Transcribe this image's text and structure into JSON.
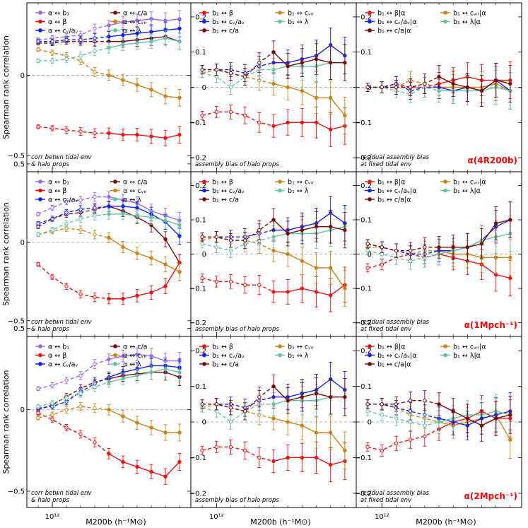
{
  "figure": {
    "ylabel": "Spearman rank correlation",
    "xlabel": "M200b (h⁻¹M⊙)",
    "xtick_label": "10¹²",
    "row_tags": [
      "α(4R200b)",
      "α(1Mpch⁻¹)",
      "α(2Mpch⁻¹)"
    ],
    "col_notes": [
      [
        "corr betwn tidal env",
        "& halo props"
      ],
      [
        "assembly bias of halo props"
      ],
      [
        "residual assembly bias",
        "at fixed tidal env"
      ]
    ],
    "col_ylim": [
      [
        -0.6,
        0.45
      ],
      [
        -0.24,
        0.24
      ],
      [
        -0.24,
        0.24
      ]
    ],
    "col_yticks": [
      [
        -0.5,
        0,
        0.5
      ],
      [
        -0.2,
        -0.1,
        0,
        0.1,
        0.2
      ],
      [
        -0.2,
        -0.1,
        0,
        0.1,
        0.2
      ]
    ],
    "col_ytick_labels": [
      [
        "−0.5",
        "0",
        "0.5"
      ],
      [
        "−0.2",
        "−0.1",
        "0",
        "0.1",
        "0.2"
      ],
      [
        "−0.2",
        "−0.1",
        "0",
        "0.1",
        "0.2"
      ]
    ]
  },
  "legends": {
    "left": [
      "α ↔ b₁",
      "α ↔ c/a",
      "α ↔ β",
      "α ↔ cᵥᵢᵣ",
      "α ↔ cᵥ/aᵥ",
      "α ↔ λ"
    ],
    "left_colors": [
      "#9966ee",
      "#7a0a0a",
      "#ee1111",
      "#c8841a",
      "#1122ee",
      "#66c2a5"
    ],
    "mid": [
      "b₁ ↔ β",
      "b₁ ↔ cᵥᵢᵣ",
      "b₁ ↔ cᵥ/aᵥ",
      "b₁ ↔ λ",
      "b₁ ↔ c/a"
    ],
    "mid_colors": [
      "#ee1111",
      "#c8841a",
      "#1122ee",
      "#66c2a5",
      "#7a0a0a"
    ],
    "right": [
      "b₁ ↔ β|α",
      "b₁ ↔ cᵥᵢᵣ|α",
      "b₁ ↔ cᵥ/aᵥ|α",
      "b₁ ↔ λ|α",
      "b₁ ↔ c/a|α"
    ],
    "right_colors": [
      "#ee1111",
      "#c8841a",
      "#1122ee",
      "#66c2a5",
      "#7a0a0a"
    ]
  },
  "chart_data": [
    {
      "type": "line",
      "panel": "row1-left",
      "x_log10_M": [
        11.9,
        12.0,
        12.1,
        12.2,
        12.3,
        12.4,
        12.5,
        12.6,
        12.7,
        12.8,
        12.9
      ],
      "ylim": [
        -0.6,
        0.45
      ],
      "series": [
        {
          "name": "α ↔ b₁",
          "color": "#9966ee",
          "values": [
            0.22,
            0.23,
            0.24,
            0.25,
            0.29,
            0.31,
            0.33,
            0.34,
            0.35,
            0.34,
            0.35
          ]
        },
        {
          "name": "α ↔ c/a",
          "color": "#7a0a0a",
          "values": [
            0.2,
            0.2,
            0.21,
            0.21,
            0.21,
            0.21,
            0.21,
            0.22,
            0.23,
            0.24,
            0.21
          ]
        },
        {
          "name": "α ↔ β",
          "color": "#ee1111",
          "values": [
            -0.32,
            -0.33,
            -0.34,
            -0.35,
            -0.36,
            -0.36,
            -0.37,
            -0.37,
            -0.38,
            -0.39,
            -0.37
          ]
        },
        {
          "name": "α ↔ cᵥᵢᵣ",
          "color": "#c8841a",
          "values": [
            0.16,
            0.14,
            0.12,
            0.09,
            0.02,
            0.0,
            -0.03,
            -0.06,
            -0.09,
            -0.13,
            -0.14
          ]
        },
        {
          "name": "α ↔ cᵥ/aᵥ",
          "color": "#1122ee",
          "values": [
            0.21,
            0.21,
            0.22,
            0.22,
            0.23,
            0.24,
            0.25,
            0.26,
            0.27,
            0.28,
            0.29
          ]
        },
        {
          "name": "α ↔ λ",
          "color": "#66c2a5",
          "values": [
            0.09,
            0.09,
            0.1,
            0.12,
            0.15,
            0.17,
            0.19,
            0.2,
            0.21,
            0.23,
            0.21
          ]
        }
      ]
    },
    {
      "type": "line",
      "panel": "row1-mid",
      "x_log10_M": [
        11.9,
        12.0,
        12.1,
        12.2,
        12.3,
        12.4,
        12.5,
        12.6,
        12.7,
        12.8,
        12.9
      ],
      "ylim": [
        -0.24,
        0.24
      ],
      "series": [
        {
          "name": "b₁ ↔ β",
          "color": "#ee1111",
          "values": [
            -0.08,
            -0.07,
            -0.07,
            -0.08,
            -0.1,
            -0.11,
            -0.1,
            -0.1,
            -0.1,
            -0.12,
            -0.11
          ]
        },
        {
          "name": "b₁ ↔ cᵥᵢᵣ",
          "color": "#c8841a",
          "values": [
            0.04,
            0.05,
            0.04,
            0.03,
            0.02,
            0.01,
            0.0,
            -0.01,
            -0.03,
            -0.03,
            -0.08
          ]
        },
        {
          "name": "b₁ ↔ cᵥ/aᵥ",
          "color": "#1122ee",
          "values": [
            0.05,
            0.05,
            0.05,
            0.04,
            0.06,
            0.07,
            0.07,
            0.08,
            0.09,
            0.12,
            0.09
          ]
        },
        {
          "name": "b₁ ↔ λ",
          "color": "#66c2a5",
          "values": [
            0.04,
            0.03,
            0.0,
            0.03,
            0.05,
            0.05,
            0.06,
            0.06,
            0.06,
            0.07,
            0.07
          ]
        },
        {
          "name": "b₁ ↔ c/a",
          "color": "#7a0a0a",
          "values": [
            0.05,
            0.05,
            0.04,
            0.03,
            0.07,
            0.1,
            0.06,
            0.07,
            0.08,
            0.07,
            0.07
          ]
        }
      ]
    },
    {
      "type": "line",
      "panel": "row1-right",
      "x_log10_M": [
        11.9,
        12.0,
        12.1,
        12.2,
        12.3,
        12.4,
        12.5,
        12.6,
        12.7,
        12.8,
        12.9
      ],
      "ylim": [
        -0.24,
        0.24
      ],
      "series": [
        {
          "name": "b₁ ↔ β|α",
          "color": "#ee1111",
          "values": [
            0.0,
            0.0,
            0.01,
            0.0,
            0.0,
            0.01,
            0.02,
            0.03,
            0.02,
            0.02,
            0.02
          ]
        },
        {
          "name": "b₁ ↔ cᵥᵢᵣ|α",
          "color": "#c8841a",
          "values": [
            0.0,
            0.0,
            0.0,
            0.02,
            0.01,
            0.0,
            0.0,
            0.0,
            0.0,
            0.01,
            -0.01
          ]
        },
        {
          "name": "b₁ ↔ cᵥ/aᵥ|α",
          "color": "#1122ee",
          "values": [
            0.0,
            0.0,
            0.01,
            -0.01,
            0.0,
            0.0,
            -0.01,
            0.0,
            -0.01,
            0.02,
            -0.01
          ]
        },
        {
          "name": "b₁ ↔ λ|α",
          "color": "#66c2a5",
          "values": [
            0.0,
            0.0,
            -0.01,
            -0.02,
            0.0,
            -0.01,
            -0.01,
            -0.01,
            -0.01,
            0.0,
            -0.01
          ]
        },
        {
          "name": "b₁ ↔ c/a|α",
          "color": "#7a0a0a",
          "values": [
            0.0,
            0.0,
            0.0,
            0.0,
            0.01,
            0.03,
            0.01,
            0.0,
            -0.01,
            0.02,
            0.01
          ]
        }
      ]
    },
    {
      "type": "line",
      "panel": "row2-left",
      "x_log10_M": [
        11.9,
        12.0,
        12.1,
        12.2,
        12.3,
        12.4,
        12.5,
        12.6,
        12.7,
        12.8,
        12.9
      ],
      "ylim": [
        -0.6,
        0.45
      ],
      "series": [
        {
          "name": "α ↔ b₁",
          "color": "#9966ee",
          "values": [
            0.18,
            0.22,
            0.26,
            0.27,
            0.29,
            0.29,
            0.27,
            0.25,
            0.2,
            0.17,
            0.14
          ]
        },
        {
          "name": "α ↔ c/a",
          "color": "#7a0a0a",
          "values": [
            0.1,
            0.15,
            0.18,
            0.19,
            0.21,
            0.23,
            0.2,
            0.16,
            0.11,
            0.02,
            -0.13
          ]
        },
        {
          "name": "α ↔ β",
          "color": "#ee1111",
          "values": [
            -0.14,
            -0.22,
            -0.28,
            -0.33,
            -0.35,
            -0.36,
            -0.36,
            -0.34,
            -0.32,
            -0.28,
            -0.13
          ]
        },
        {
          "name": "α ↔ cᵥᵢᵣ",
          "color": "#c8841a",
          "values": [
            0.05,
            0.07,
            0.09,
            0.08,
            0.05,
            0.03,
            -0.03,
            -0.07,
            -0.1,
            -0.14,
            -0.19
          ]
        },
        {
          "name": "α ↔ cᵥ/aᵥ",
          "color": "#1122ee",
          "values": [
            0.12,
            0.15,
            0.19,
            0.21,
            0.22,
            0.23,
            0.23,
            0.22,
            0.18,
            0.13,
            0.04
          ]
        },
        {
          "name": "α ↔ λ",
          "color": "#66c2a5",
          "values": [
            0.05,
            0.08,
            0.12,
            0.15,
            0.17,
            0.18,
            0.18,
            0.17,
            0.16,
            0.14,
            0.11
          ]
        }
      ]
    },
    {
      "type": "line",
      "panel": "row2-mid",
      "x_log10_M": [
        11.9,
        12.0,
        12.1,
        12.2,
        12.3,
        12.4,
        12.5,
        12.6,
        12.7,
        12.8,
        12.9
      ],
      "ylim": [
        -0.24,
        0.24
      ],
      "series": [
        {
          "name": "b₁ ↔ β",
          "color": "#ee1111",
          "values": [
            -0.07,
            -0.08,
            -0.08,
            -0.09,
            -0.09,
            -0.11,
            -0.11,
            -0.1,
            -0.11,
            -0.12,
            -0.09
          ]
        },
        {
          "name": "b₁ ↔ cᵥᵢᵣ",
          "color": "#c8841a",
          "values": [
            0.04,
            0.05,
            0.04,
            0.04,
            0.03,
            0.01,
            0.0,
            -0.02,
            -0.04,
            -0.04,
            -0.1
          ]
        },
        {
          "name": "b₁ ↔ cᵥ/aᵥ",
          "color": "#1122ee",
          "values": [
            0.05,
            0.05,
            0.05,
            0.05,
            0.06,
            0.07,
            0.07,
            0.08,
            0.09,
            0.12,
            0.09
          ]
        },
        {
          "name": "b₁ ↔ λ",
          "color": "#66c2a5",
          "values": [
            0.03,
            0.02,
            0.01,
            0.03,
            0.04,
            0.05,
            0.06,
            0.06,
            0.06,
            0.07,
            0.08
          ]
        },
        {
          "name": "b₁ ↔ c/a",
          "color": "#7a0a0a",
          "values": [
            0.05,
            0.05,
            0.04,
            0.04,
            0.07,
            0.1,
            0.06,
            0.07,
            0.08,
            0.08,
            0.07
          ]
        }
      ]
    },
    {
      "type": "line",
      "panel": "row2-right",
      "x_log10_M": [
        11.9,
        12.0,
        12.1,
        12.2,
        12.3,
        12.4,
        12.5,
        12.6,
        12.7,
        12.8,
        12.9
      ],
      "ylim": [
        -0.24,
        0.24
      ],
      "series": [
        {
          "name": "b₁ ↔ β|α",
          "color": "#ee1111",
          "values": [
            -0.04,
            -0.03,
            -0.01,
            0.0,
            -0.01,
            0.0,
            -0.01,
            -0.02,
            -0.03,
            -0.06,
            -0.07
          ]
        },
        {
          "name": "b₁ ↔ cᵥᵢᵣ|α",
          "color": "#c8841a",
          "values": [
            0.02,
            0.02,
            0.01,
            0.0,
            0.01,
            0.01,
            0.0,
            0.0,
            -0.01,
            -0.01,
            -0.01
          ]
        },
        {
          "name": "b₁ ↔ cᵥ/aᵥ|α",
          "color": "#1122ee",
          "values": [
            0.03,
            0.02,
            0.01,
            0.0,
            0.0,
            0.01,
            0.01,
            0.02,
            0.04,
            0.08,
            0.1
          ]
        },
        {
          "name": "b₁ ↔ λ|α",
          "color": "#66c2a5",
          "values": [
            0.01,
            0.0,
            -0.01,
            -0.02,
            -0.01,
            0.0,
            0.01,
            0.02,
            0.04,
            0.05,
            0.06
          ]
        },
        {
          "name": "b₁ ↔ c/a|α",
          "color": "#7a0a0a",
          "values": [
            0.03,
            0.02,
            0.01,
            0.01,
            0.02,
            0.02,
            0.02,
            0.02,
            0.03,
            0.09,
            0.1
          ]
        }
      ]
    },
    {
      "type": "line",
      "panel": "row3-left",
      "x_log10_M": [
        11.9,
        12.0,
        12.1,
        12.2,
        12.3,
        12.4,
        12.5,
        12.6,
        12.7,
        12.8,
        12.9
      ],
      "ylim": [
        -0.6,
        0.45
      ],
      "series": [
        {
          "name": "α ↔ b₁",
          "color": "#9966ee",
          "values": [
            0.13,
            0.15,
            0.18,
            0.21,
            0.28,
            0.31,
            0.33,
            0.34,
            0.33,
            0.3,
            0.3
          ]
        },
        {
          "name": "α ↔ c/a",
          "color": "#7a0a0a",
          "values": [
            0.0,
            0.03,
            0.08,
            0.13,
            0.17,
            0.19,
            0.21,
            0.22,
            0.23,
            0.23,
            0.2
          ]
        },
        {
          "name": "α ↔ β",
          "color": "#ee1111",
          "values": [
            -0.02,
            -0.06,
            -0.11,
            -0.15,
            -0.2,
            -0.27,
            -0.32,
            -0.35,
            -0.38,
            -0.41,
            -0.32
          ]
        },
        {
          "name": "α ↔ cᵥᵢᵣ",
          "color": "#c8841a",
          "values": [
            -0.05,
            -0.03,
            0.0,
            0.02,
            0.01,
            0.0,
            -0.04,
            -0.08,
            -0.11,
            -0.14,
            -0.14
          ]
        },
        {
          "name": "α ↔ cᵥ/aᵥ",
          "color": "#1122ee",
          "values": [
            0.01,
            0.02,
            0.05,
            0.11,
            0.16,
            0.2,
            0.23,
            0.25,
            0.27,
            0.27,
            0.26
          ]
        },
        {
          "name": "α ↔ λ",
          "color": "#66c2a5",
          "values": [
            0.02,
            0.04,
            0.07,
            0.1,
            0.14,
            0.17,
            0.19,
            0.21,
            0.23,
            0.25,
            0.23
          ]
        }
      ]
    },
    {
      "type": "line",
      "panel": "row3-mid",
      "x_log10_M": [
        11.9,
        12.0,
        12.1,
        12.2,
        12.3,
        12.4,
        12.5,
        12.6,
        12.7,
        12.8,
        12.9
      ],
      "ylim": [
        -0.24,
        0.24
      ],
      "series": [
        {
          "name": "b₁ ↔ β",
          "color": "#ee1111",
          "values": [
            -0.08,
            -0.07,
            -0.07,
            -0.08,
            -0.1,
            -0.11,
            -0.1,
            -0.1,
            -0.1,
            -0.12,
            -0.11
          ]
        },
        {
          "name": "b₁ ↔ cᵥᵢᵣ",
          "color": "#c8841a",
          "values": [
            0.04,
            0.05,
            0.04,
            0.03,
            0.02,
            0.01,
            0.0,
            -0.01,
            -0.03,
            -0.03,
            -0.08
          ]
        },
        {
          "name": "b₁ ↔ cᵥ/aᵥ",
          "color": "#1122ee",
          "values": [
            0.05,
            0.05,
            0.05,
            0.04,
            0.06,
            0.07,
            0.07,
            0.08,
            0.09,
            0.12,
            0.09
          ]
        },
        {
          "name": "b₁ ↔ λ",
          "color": "#66c2a5",
          "values": [
            0.04,
            0.03,
            0.0,
            0.03,
            0.05,
            0.05,
            0.06,
            0.06,
            0.06,
            0.07,
            0.07
          ]
        },
        {
          "name": "b₁ ↔ c/a",
          "color": "#7a0a0a",
          "values": [
            0.05,
            0.05,
            0.04,
            0.03,
            0.07,
            0.1,
            0.06,
            0.07,
            0.08,
            0.07,
            0.07
          ]
        }
      ]
    },
    {
      "type": "line",
      "panel": "row3-right",
      "x_log10_M": [
        11.9,
        12.0,
        12.1,
        12.2,
        12.3,
        12.4,
        12.5,
        12.6,
        12.7,
        12.8,
        12.9
      ],
      "ylim": [
        -0.24,
        0.24
      ],
      "series": [
        {
          "name": "b₁ ↔ β|α",
          "color": "#ee1111",
          "values": [
            -0.07,
            -0.08,
            -0.06,
            -0.05,
            -0.04,
            -0.02,
            0.0,
            0.01,
            0.03,
            0.01,
            0.01
          ]
        },
        {
          "name": "b₁ ↔ cᵥᵢᵣ|α",
          "color": "#c8841a",
          "values": [
            0.05,
            0.05,
            0.04,
            0.02,
            0.01,
            0.0,
            -0.01,
            0.0,
            0.01,
            0.02,
            -0.05
          ]
        },
        {
          "name": "b₁ ↔ cᵥ/aᵥ|α",
          "color": "#1122ee",
          "values": [
            0.05,
            0.05,
            0.04,
            0.03,
            0.02,
            0.01,
            0.0,
            -0.01,
            0.01,
            0.02,
            0.03
          ]
        },
        {
          "name": "b₁ ↔ λ|α",
          "color": "#66c2a5",
          "values": [
            0.03,
            0.02,
            0.01,
            0.0,
            -0.01,
            0.0,
            0.01,
            0.02,
            0.02,
            0.03,
            0.02
          ]
        },
        {
          "name": "b₁ ↔ c/a|α",
          "color": "#7a0a0a",
          "values": [
            0.05,
            0.05,
            0.05,
            0.06,
            0.06,
            0.05,
            0.03,
            0.01,
            -0.01,
            0.01,
            0.02
          ]
        }
      ]
    }
  ]
}
